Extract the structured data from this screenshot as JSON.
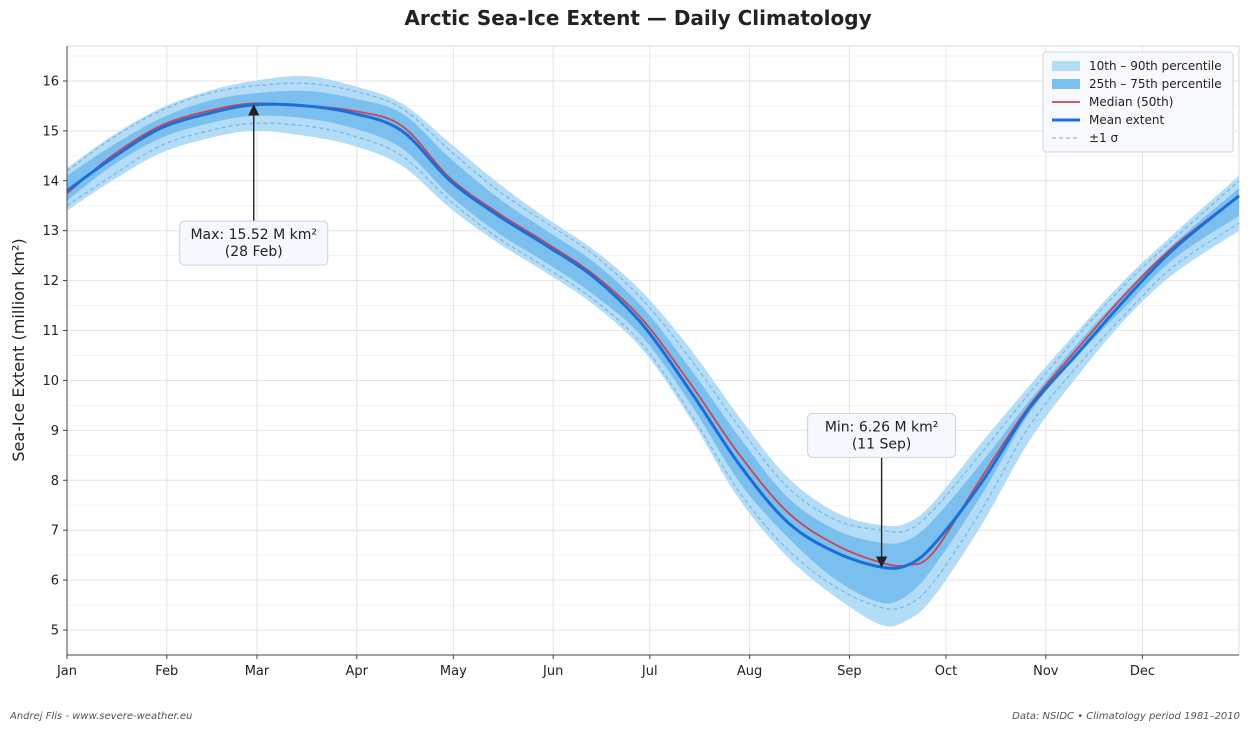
{
  "chart_data": {
    "type": "area",
    "title": "Arctic Sea-Ice Extent — Daily Climatology",
    "xlabel": "",
    "ylabel": "Sea-Ice Extent  (million km²)",
    "x_domain": [
      1,
      365
    ],
    "x_ticks": [
      {
        "day": 1,
        "label": "Jan"
      },
      {
        "day": 32,
        "label": "Feb"
      },
      {
        "day": 60,
        "label": "Mar"
      },
      {
        "day": 91,
        "label": "Apr"
      },
      {
        "day": 121,
        "label": "May"
      },
      {
        "day": 152,
        "label": "Jun"
      },
      {
        "day": 182,
        "label": "Jul"
      },
      {
        "day": 213,
        "label": "Aug"
      },
      {
        "day": 244,
        "label": "Sep"
      },
      {
        "day": 274,
        "label": "Oct"
      },
      {
        "day": 305,
        "label": "Nov"
      },
      {
        "day": 335,
        "label": "Dec"
      }
    ],
    "ylim": [
      4.5,
      16.7
    ],
    "y_ticks": [
      5,
      6,
      7,
      8,
      9,
      10,
      11,
      12,
      13,
      14,
      15,
      16
    ],
    "grid": true,
    "legend_position": "top-right",
    "x": [
      1,
      15,
      30,
      45,
      59,
      75,
      90,
      105,
      120,
      135,
      150,
      165,
      180,
      195,
      210,
      225,
      240,
      254,
      262,
      270,
      285,
      300,
      315,
      330,
      345,
      365
    ],
    "series": [
      {
        "name": "10th – 90th percentile",
        "kind": "band",
        "color": "#b3dcf6",
        "low": [
          13.4,
          14.0,
          14.55,
          14.85,
          15.0,
          14.9,
          14.7,
          14.3,
          13.45,
          12.75,
          12.15,
          11.5,
          10.6,
          9.2,
          7.6,
          6.45,
          5.65,
          5.1,
          5.2,
          5.65,
          7.1,
          8.8,
          10.1,
          11.25,
          12.15,
          13.0
        ],
        "high": [
          14.25,
          14.9,
          15.45,
          15.8,
          16.0,
          16.1,
          15.9,
          15.55,
          14.75,
          13.95,
          13.25,
          12.6,
          11.75,
          10.6,
          9.25,
          8.05,
          7.35,
          7.1,
          7.15,
          7.55,
          8.75,
          9.9,
          11.0,
          12.05,
          12.95,
          14.1
        ]
      },
      {
        "name": "25th – 75th percentile",
        "kind": "band",
        "color": "#7bbfee",
        "low": [
          13.6,
          14.3,
          14.85,
          15.15,
          15.3,
          15.25,
          15.05,
          14.65,
          13.7,
          12.95,
          12.35,
          11.7,
          10.85,
          9.5,
          7.95,
          6.85,
          6.0,
          5.55,
          5.7,
          6.25,
          7.7,
          9.35,
          10.5,
          11.5,
          12.45,
          13.3
        ],
        "high": [
          14.1,
          14.7,
          15.25,
          15.6,
          15.75,
          15.8,
          15.65,
          15.35,
          14.45,
          13.65,
          13.0,
          12.35,
          11.45,
          10.2,
          8.85,
          7.65,
          7.0,
          6.75,
          6.8,
          7.2,
          8.35,
          9.6,
          10.75,
          11.8,
          12.75,
          13.85
        ]
      },
      {
        "name": "±1 σ",
        "kind": "dashed-band",
        "color": "#6aaee6",
        "low": [
          13.5,
          14.1,
          14.7,
          15.0,
          15.15,
          15.1,
          14.9,
          14.5,
          13.6,
          12.85,
          12.25,
          11.6,
          10.7,
          9.3,
          7.75,
          6.6,
          5.85,
          5.45,
          5.5,
          5.95,
          7.4,
          9.1,
          10.3,
          11.35,
          12.3,
          13.15
        ],
        "high": [
          14.2,
          14.85,
          15.4,
          15.75,
          15.9,
          15.95,
          15.8,
          15.45,
          14.6,
          13.8,
          13.15,
          12.5,
          11.6,
          10.4,
          9.05,
          7.85,
          7.2,
          7.0,
          7.0,
          7.4,
          8.55,
          9.75,
          10.9,
          11.95,
          12.85,
          14.0
        ]
      },
      {
        "name": "Median (50th)",
        "kind": "line",
        "color": "#cc4455",
        "values": [
          13.75,
          14.5,
          15.1,
          15.4,
          15.55,
          15.5,
          15.4,
          15.1,
          14.05,
          13.35,
          12.75,
          12.1,
          11.2,
          9.9,
          8.5,
          7.35,
          6.7,
          6.35,
          6.3,
          6.55,
          8.05,
          9.5,
          10.65,
          11.75,
          12.7,
          13.7
        ]
      },
      {
        "name": "Mean extent",
        "kind": "line",
        "color": "#1a6fd8",
        "values": [
          13.8,
          14.45,
          15.05,
          15.35,
          15.52,
          15.5,
          15.35,
          15.0,
          14.0,
          13.3,
          12.7,
          12.05,
          11.1,
          9.75,
          8.3,
          7.15,
          6.55,
          6.26,
          6.3,
          6.7,
          7.95,
          9.45,
          10.55,
          11.65,
          12.65,
          13.7
        ]
      }
    ],
    "annotations": [
      {
        "name": "max",
        "line1": "Max: 15.52 M km²",
        "line2": "(28 Feb)",
        "x": 59,
        "y": 15.52,
        "label_y": 12.75
      },
      {
        "name": "min",
        "line1": "Min: 6.26 M km²",
        "line2": "(11 Sep)",
        "x": 254,
        "y": 6.26,
        "label_y": 8.9
      }
    ]
  },
  "footer": {
    "left": "Andrej Flis - www.severe-weather.eu",
    "right": "Data: NSIDC  •  Climatology period 1981–2010"
  }
}
